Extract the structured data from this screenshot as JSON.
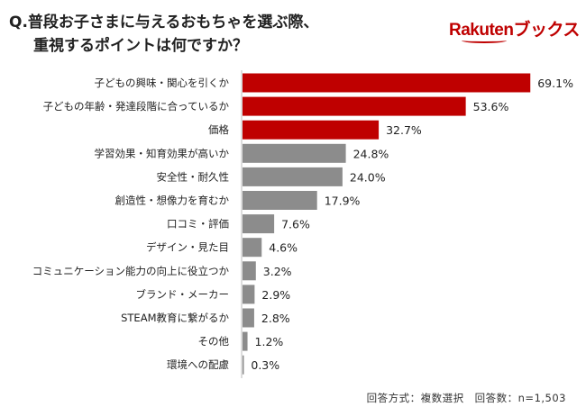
{
  "title_line1": "Q.普段お子さまに与えるおもちゃを選ぶ際、",
  "title_line2": "重視するポイントは何ですか？",
  "logo": "Rakutenブックス",
  "note": "回答方式：複数選択　回答数：n=1,503",
  "colors": {
    "highlight": "#bf0000",
    "other": "#8c8c8c",
    "brand": "#bf0000"
  },
  "chart_data": {
    "type": "bar",
    "orientation": "horizontal",
    "categories": [
      "子どもの興味・関心を引くか",
      "子どもの年齢・発達段階に合っているか",
      "価格",
      "学習効果・知育効果が高いか",
      "安全性・耐久性",
      "創造性・想像力を育むか",
      "口コミ・評価",
      "デザイン・見た目",
      "コミュニケーション能力の向上に役立つか",
      "ブランド・メーカー",
      "STEAM教育に繋がるか",
      "その他",
      "環境への配慮"
    ],
    "values": [
      69.1,
      53.6,
      32.7,
      24.8,
      24.0,
      17.9,
      7.6,
      4.6,
      3.2,
      2.9,
      2.8,
      1.2,
      0.3
    ],
    "value_labels": [
      "69.1%",
      "53.6%",
      "32.7%",
      "24.8%",
      "24.0%",
      "17.9%",
      "7.6%",
      "4.6%",
      "3.2%",
      "2.9%",
      "2.8%",
      "1.2%",
      "0.3%"
    ],
    "highlighted": [
      true,
      true,
      true,
      false,
      false,
      false,
      false,
      false,
      false,
      false,
      false,
      false,
      false
    ],
    "unit": "%",
    "grid": false
  }
}
